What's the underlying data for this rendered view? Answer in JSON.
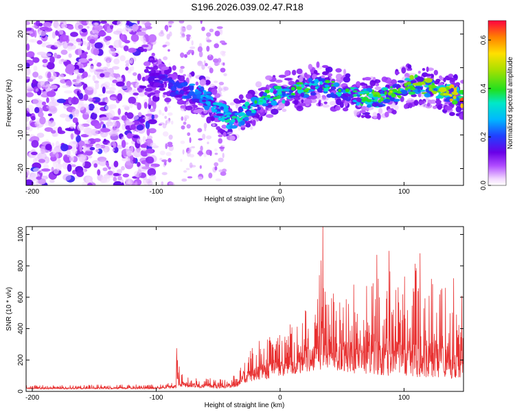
{
  "title": "S196.2026.039.02.47.R18",
  "chart_data": [
    {
      "type": "heatmap",
      "xlabel": "Height of straight line (km)",
      "ylabel": "Frequency (Hz)",
      "xlim": [
        -205,
        148
      ],
      "ylim": [
        -25,
        24
      ],
      "xticks": [
        -200,
        -100,
        0,
        100
      ],
      "xtick_labels": [
        "-200",
        "-100",
        "0",
        "100"
      ],
      "yticks": [
        -20,
        -10,
        0,
        10,
        20
      ],
      "ytick_labels": [
        "-20",
        "-10",
        "0",
        "10",
        "20"
      ],
      "grid": false,
      "colorbar": {
        "label": "Normalized spectral amplitude",
        "range": [
          0.0,
          0.68
        ],
        "ticks": [
          0.0,
          0.2,
          0.4,
          0.6
        ],
        "tick_labels": [
          "0.0",
          "0.2",
          "0.4",
          "0.6"
        ]
      },
      "noise_region_x": [
        -205,
        -100
      ],
      "sparse_streaks_x": [
        -92,
        -75,
        -60,
        -48
      ],
      "ridge": {
        "x": [
          -108,
          -95,
          -85,
          -75,
          -65,
          -55,
          -45,
          -38,
          -30,
          -20,
          -10,
          0,
          10,
          20,
          30,
          40,
          50,
          60,
          70,
          80,
          90,
          100,
          110,
          120,
          130,
          140,
          148
        ],
        "freq": [
          8,
          6,
          4,
          3,
          2,
          -1,
          -4,
          -6,
          -4,
          -1,
          1,
          2,
          3,
          4,
          5,
          4,
          3,
          2,
          1,
          1,
          2,
          4,
          5,
          4,
          3,
          2,
          1
        ],
        "peak_amplitude": [
          0.15,
          0.18,
          0.22,
          0.25,
          0.28,
          0.3,
          0.35,
          0.38,
          0.36,
          0.42,
          0.4,
          0.38,
          0.42,
          0.45,
          0.35,
          0.42,
          0.4,
          0.45,
          0.42,
          0.45,
          0.5,
          0.45,
          0.48,
          0.55,
          0.5,
          0.6,
          0.68
        ]
      }
    },
    {
      "type": "line",
      "xlabel": "Height of straight line (km)",
      "ylabel": "SNR (10 * v/v)",
      "xlim": [
        -205,
        148
      ],
      "ylim": [
        0,
        1050
      ],
      "xticks": [
        -200,
        -100,
        0,
        100
      ],
      "xtick_labels": [
        "-200",
        "-100",
        "0",
        "100"
      ],
      "yticks": [
        0,
        200,
        400,
        600,
        800,
        1000
      ],
      "ytick_labels": [
        "0",
        "200",
        "400",
        "600",
        "800",
        "1000"
      ],
      "grid": false,
      "series": [
        {
          "name": "SNR",
          "color": "#e83030",
          "envelope_x": [
            -205,
            -100,
            -90,
            -84,
            -83,
            -80,
            -75,
            -55,
            -42,
            -35,
            -30,
            -20,
            -10,
            0,
            5,
            10,
            20,
            25,
            30,
            33,
            35,
            38,
            45,
            55,
            65,
            75,
            85,
            95,
            100,
            105,
            110,
            115,
            120,
            130,
            140,
            148
          ],
          "envelope_max": [
            40,
            45,
            60,
            80,
            270,
            150,
            90,
            85,
            90,
            120,
            250,
            320,
            350,
            380,
            400,
            450,
            550,
            660,
            700,
            1050,
            750,
            700,
            620,
            720,
            650,
            700,
            850,
            720,
            780,
            650,
            870,
            700,
            800,
            740,
            750,
            620
          ],
          "envelope_min": [
            15,
            15,
            20,
            20,
            40,
            30,
            25,
            20,
            20,
            30,
            50,
            70,
            80,
            90,
            100,
            110,
            120,
            130,
            130,
            140,
            140,
            130,
            130,
            120,
            110,
            110,
            100,
            100,
            100,
            100,
            90,
            90,
            90,
            90,
            80,
            80
          ],
          "spikes": [
            {
              "x": -83.5,
              "y": 275
            },
            {
              "x": 34.5,
              "y": 1050
            },
            {
              "x": 88,
              "y": 895
            },
            {
              "x": 113,
              "y": 880
            },
            {
              "x": 78,
              "y": 870
            }
          ]
        }
      ]
    }
  ]
}
